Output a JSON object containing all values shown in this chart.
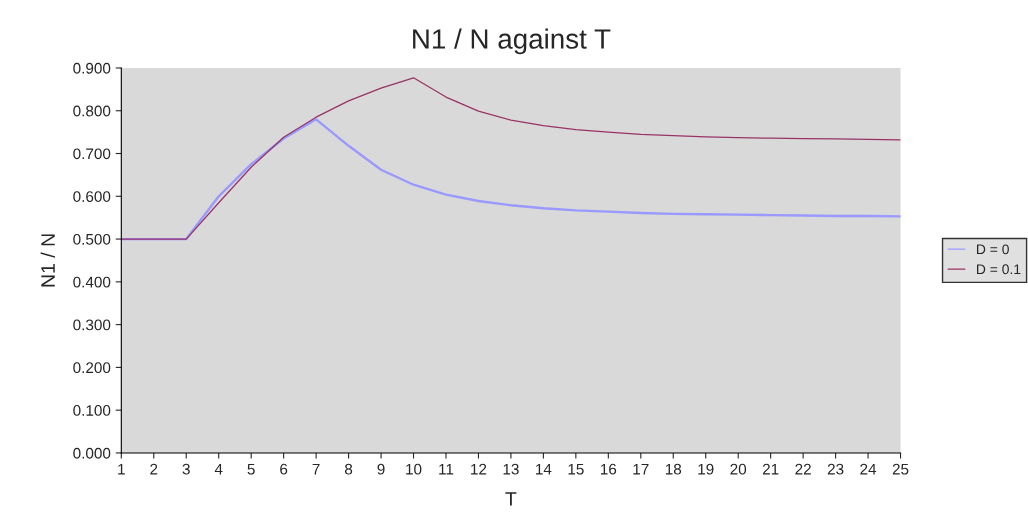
{
  "chart_data": {
    "type": "line",
    "title": "N1 / N against T",
    "xlabel": "T",
    "ylabel": "N1 / N",
    "x": [
      1,
      2,
      3,
      4,
      5,
      6,
      7,
      8,
      9,
      10,
      11,
      12,
      13,
      14,
      15,
      16,
      17,
      18,
      19,
      20,
      21,
      22,
      23,
      24,
      25
    ],
    "series": [
      {
        "name": "D = 0",
        "color": "#9999ff",
        "values": [
          0.5,
          0.5,
          0.5,
          0.6,
          0.675,
          0.735,
          0.78,
          0.718,
          0.662,
          0.627,
          0.604,
          0.589,
          0.579,
          0.572,
          0.567,
          0.564,
          0.561,
          0.559,
          0.558,
          0.557,
          0.556,
          0.555,
          0.554,
          0.554,
          0.553
        ]
      },
      {
        "name": "D = 0.1",
        "color": "#993366",
        "values": [
          0.5,
          0.5,
          0.5,
          0.585,
          0.668,
          0.738,
          0.785,
          0.823,
          0.853,
          0.877,
          0.832,
          0.799,
          0.778,
          0.765,
          0.756,
          0.75,
          0.745,
          0.742,
          0.739,
          0.737,
          0.736,
          0.735,
          0.734,
          0.733,
          0.732
        ]
      }
    ],
    "xlim": [
      1,
      25
    ],
    "xticks": [
      1,
      2,
      3,
      4,
      5,
      6,
      7,
      8,
      9,
      10,
      11,
      12,
      13,
      14,
      15,
      16,
      17,
      18,
      19,
      20,
      21,
      22,
      23,
      24,
      25
    ],
    "ylim": [
      0,
      0.9
    ],
    "yticks": [
      {
        "value": 0,
        "label": "0.000"
      },
      {
        "value": 0.1,
        "label": "0.100"
      },
      {
        "value": 0.2,
        "label": "0.200"
      },
      {
        "value": 0.3,
        "label": "0.300"
      },
      {
        "value": 0.4,
        "label": "0.400"
      },
      {
        "value": 0.5,
        "label": "0.500"
      },
      {
        "value": 0.6,
        "label": "0.600"
      },
      {
        "value": 0.7,
        "label": "0.700"
      },
      {
        "value": 0.8,
        "label": "0.800"
      },
      {
        "value": 0.9,
        "label": "0.900"
      }
    ],
    "grid": false,
    "legend": "right",
    "marker": "none",
    "line_style": "solid"
  }
}
